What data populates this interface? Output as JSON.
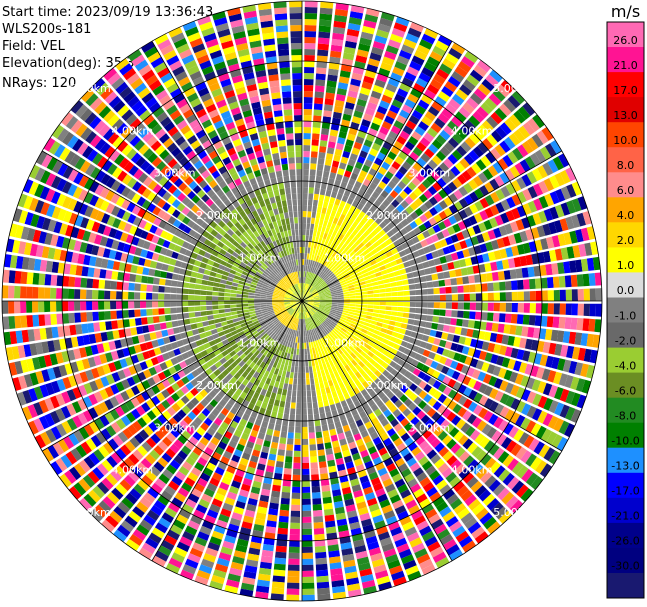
{
  "info": {
    "start_time": "Start time: 2023/09/19 13:36:43",
    "site": "WLS200s-181",
    "field": "Field: VEL",
    "elevation": "Elevation(deg): 35.30",
    "nrays": "NRays: 120"
  },
  "chart_data": {
    "type": "heatmap",
    "projection": "polar-ppi",
    "field": "VEL",
    "n_rays": 120,
    "range_rings_km": [
      1.0,
      2.0,
      3.0,
      4.0,
      5.0
    ],
    "ring_labels": [
      "1.00km",
      "2.00km",
      "3.00km",
      "4.00km",
      "5.00km"
    ],
    "colorbar": {
      "unit": "m/s",
      "tick_labels": [
        "26.0",
        "21.0",
        "17.0",
        "13.0",
        "10.0",
        "8.0",
        "6.0",
        "4.0",
        "2.0",
        "1.0",
        "0.0",
        "-1.0",
        "-2.0",
        "-4.0",
        "-6.0",
        "-8.0",
        "-10.0",
        "-13.0",
        "-17.0",
        "-21.0",
        "-26.0",
        "-30.0"
      ],
      "colors": [
        "#ff69b4",
        "#ff1493",
        "#ff0000",
        "#e00000",
        "#ff4500",
        "#ff6347",
        "#ff8c8c",
        "#ffa500",
        "#ffd700",
        "#ffff00",
        "#dcdcdc",
        "#808080",
        "#696969",
        "#9acd32",
        "#6b8e23",
        "#228b22",
        "#008000",
        "#1e90ff",
        "#0000ff",
        "#0000cd",
        "#00008b",
        "#000080",
        "#191970"
      ]
    },
    "pattern_description_values": {
      "inner_sector_toward_left_ms": [
        -1.0,
        -4.0
      ],
      "inner_sector_toward_right_ms": [
        1.0,
        4.0
      ]
    }
  }
}
